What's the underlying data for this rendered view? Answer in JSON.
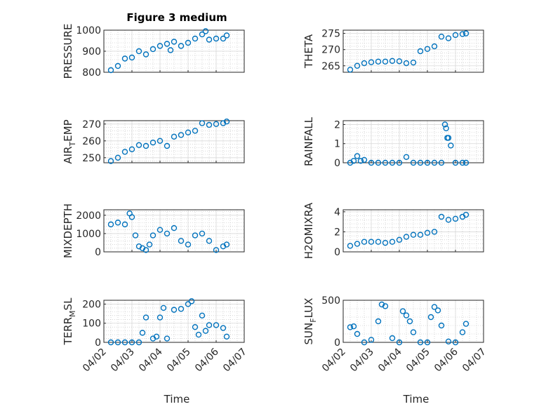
{
  "figure": {
    "title": "Figure 3 medium",
    "xlabel": "Time",
    "colors": {
      "marker": "#0072BD",
      "axis": "#262626",
      "grid": "#bdbdbd"
    }
  },
  "chart_data": [
    {
      "type": "scatter",
      "marker": "open-circle",
      "ylabel": "PRESSURE",
      "xlim": [
        "04/02",
        "04/07"
      ],
      "ylim": [
        800,
        1000
      ],
      "yticks": [
        800,
        900,
        1000
      ],
      "xticks": [
        "04/02",
        "04/03",
        "04/04",
        "04/05",
        "04/06",
        "04/07"
      ],
      "grid": "on",
      "x": [
        "04/02 06:00",
        "04/02 12:00",
        "04/02 18:00",
        "04/03 00:00",
        "04/03 06:00",
        "04/03 12:00",
        "04/03 18:00",
        "04/04 00:00",
        "04/04 06:00",
        "04/04 09:00",
        "04/04 12:00",
        "04/04 18:00",
        "04/05 00:00",
        "04/05 06:00",
        "04/05 12:00",
        "04/05 15:00",
        "04/05 18:00",
        "04/06 00:00",
        "04/06 06:00",
        "04/06 09:00"
      ],
      "y": [
        810,
        830,
        865,
        870,
        900,
        885,
        910,
        925,
        935,
        905,
        945,
        925,
        940,
        960,
        980,
        995,
        955,
        960,
        960,
        975
      ]
    },
    {
      "type": "scatter",
      "marker": "open-circle",
      "ylabel": "THETA",
      "xlim": [
        "04/02",
        "04/07"
      ],
      "ylim": [
        263,
        276
      ],
      "yticks": [
        265,
        270,
        275
      ],
      "xticks": [
        "04/02",
        "04/03",
        "04/04",
        "04/05",
        "04/06",
        "04/07"
      ],
      "grid": "on",
      "x": [
        "04/02 06:00",
        "04/02 12:00",
        "04/02 18:00",
        "04/03 00:00",
        "04/03 06:00",
        "04/03 12:00",
        "04/03 18:00",
        "04/04 00:00",
        "04/04 06:00",
        "04/04 12:00",
        "04/04 18:00",
        "04/05 00:00",
        "04/05 06:00",
        "04/05 12:00",
        "04/05 18:00",
        "04/06 00:00",
        "04/06 06:00",
        "04/06 09:00"
      ],
      "y": [
        263.8,
        265.0,
        265.8,
        266.1,
        266.3,
        266.3,
        266.5,
        266.4,
        265.8,
        266.0,
        269.5,
        270.2,
        271.0,
        274.0,
        273.5,
        274.5,
        274.8,
        275.0
      ]
    },
    {
      "type": "scatter",
      "marker": "open-circle",
      "ylabel": "AIR_TEMP",
      "ylabel_main": "AIR",
      "ylabel_sub": "T",
      "ylabel_rest": "EMP",
      "xlim": [
        "04/02",
        "04/07"
      ],
      "ylim": [
        247,
        272
      ],
      "yticks": [
        250,
        260,
        270
      ],
      "xticks": [
        "04/02",
        "04/03",
        "04/04",
        "04/05",
        "04/06",
        "04/07"
      ],
      "grid": "on",
      "x": [
        "04/02 06:00",
        "04/02 12:00",
        "04/02 18:00",
        "04/03 00:00",
        "04/03 06:00",
        "04/03 12:00",
        "04/03 18:00",
        "04/04 00:00",
        "04/04 06:00",
        "04/04 12:00",
        "04/04 18:00",
        "04/05 00:00",
        "04/05 06:00",
        "04/05 12:00",
        "04/05 18:00",
        "04/06 00:00",
        "04/06 06:00",
        "04/06 09:00"
      ],
      "y": [
        248,
        250,
        253.5,
        255,
        257.5,
        257,
        259,
        260,
        257,
        262.5,
        263.5,
        265,
        266,
        270.5,
        269.5,
        270,
        270.5,
        271.5
      ]
    },
    {
      "type": "scatter",
      "marker": "open-circle",
      "ylabel": "RAINFALL",
      "xlim": [
        "04/02",
        "04/07"
      ],
      "ylim": [
        0,
        2.2
      ],
      "yticks": [
        0,
        1,
        2
      ],
      "xticks": [
        "04/02",
        "04/03",
        "04/04",
        "04/05",
        "04/06",
        "04/07"
      ],
      "grid": "on",
      "x": [
        "04/02 06:00",
        "04/02 09:00",
        "04/02 12:00",
        "04/02 15:00",
        "04/02 18:00",
        "04/03 00:00",
        "04/03 06:00",
        "04/03 12:00",
        "04/03 18:00",
        "04/04 00:00",
        "04/04 06:00",
        "04/04 12:00",
        "04/04 18:00",
        "04/05 00:00",
        "04/05 06:00",
        "04/05 12:00",
        "04/05 15:00",
        "04/05 16:00",
        "04/05 17:00",
        "04/05 18:00",
        "04/05 20:00",
        "04/06 00:00",
        "04/06 06:00",
        "04/06 09:00"
      ],
      "y": [
        0,
        0.1,
        0.35,
        0.1,
        0.15,
        0,
        0,
        0,
        0,
        0,
        0.3,
        0,
        0,
        0,
        0,
        0,
        2.0,
        1.8,
        1.3,
        1.3,
        0.9,
        0,
        0,
        0
      ]
    },
    {
      "type": "scatter",
      "marker": "open-circle",
      "ylabel": "MIXDEPTH",
      "xlim": [
        "04/02",
        "04/07"
      ],
      "ylim": [
        0,
        2300
      ],
      "yticks": [
        0,
        1000,
        2000
      ],
      "xticks": [
        "04/02",
        "04/03",
        "04/04",
        "04/05",
        "04/06",
        "04/07"
      ],
      "grid": "on",
      "x": [
        "04/02 06:00",
        "04/02 12:00",
        "04/02 18:00",
        "04/02 22:00",
        "04/03 00:00",
        "04/03 03:00",
        "04/03 06:00",
        "04/03 09:00",
        "04/03 12:00",
        "04/03 15:00",
        "04/03 18:00",
        "04/04 00:00",
        "04/04 06:00",
        "04/04 12:00",
        "04/04 18:00",
        "04/05 00:00",
        "04/05 06:00",
        "04/05 12:00",
        "04/05 18:00",
        "04/06 00:00",
        "04/06 06:00",
        "04/06 09:00"
      ],
      "y": [
        1500,
        1600,
        1500,
        2100,
        1900,
        900,
        300,
        200,
        100,
        400,
        900,
        1200,
        1000,
        1300,
        600,
        400,
        900,
        1000,
        600,
        100,
        300,
        400
      ]
    },
    {
      "type": "scatter",
      "marker": "open-circle",
      "ylabel": "H2OMIXRA",
      "xlim": [
        "04/02",
        "04/07"
      ],
      "ylim": [
        0,
        4.2
      ],
      "yticks": [
        0,
        2,
        4
      ],
      "xticks": [
        "04/02",
        "04/03",
        "04/04",
        "04/05",
        "04/06",
        "04/07"
      ],
      "grid": "on",
      "x": [
        "04/02 06:00",
        "04/02 12:00",
        "04/02 18:00",
        "04/03 00:00",
        "04/03 06:00",
        "04/03 12:00",
        "04/03 18:00",
        "04/04 00:00",
        "04/04 06:00",
        "04/04 12:00",
        "04/04 18:00",
        "04/05 00:00",
        "04/05 06:00",
        "04/05 12:00",
        "04/05 18:00",
        "04/06 00:00",
        "04/06 06:00",
        "04/06 09:00"
      ],
      "y": [
        0.6,
        0.8,
        1.0,
        1.0,
        1.0,
        0.9,
        1.0,
        1.2,
        1.5,
        1.7,
        1.7,
        1.9,
        2.0,
        3.5,
        3.2,
        3.3,
        3.5,
        3.7
      ]
    },
    {
      "type": "scatter",
      "marker": "open-circle",
      "ylabel": "TERR_MSL",
      "ylabel_main": "TERR",
      "ylabel_sub": "M",
      "ylabel_rest": "SL",
      "xlim": [
        "04/02",
        "04/07"
      ],
      "ylim": [
        0,
        220
      ],
      "yticks": [
        0,
        100,
        200
      ],
      "xticks": [
        "04/02",
        "04/03",
        "04/04",
        "04/05",
        "04/06",
        "04/07"
      ],
      "grid": "on",
      "x": [
        "04/02 06:00",
        "04/02 12:00",
        "04/02 18:00",
        "04/03 00:00",
        "04/03 06:00",
        "04/03 09:00",
        "04/03 12:00",
        "04/03 18:00",
        "04/03 21:00",
        "04/04 00:00",
        "04/04 03:00",
        "04/04 06:00",
        "04/04 12:00",
        "04/04 18:00",
        "04/05 00:00",
        "04/05 03:00",
        "04/05 06:00",
        "04/05 09:00",
        "04/05 12:00",
        "04/05 15:00",
        "04/05 18:00",
        "04/06 00:00",
        "04/06 06:00",
        "04/06 09:00"
      ],
      "y": [
        0,
        0,
        0,
        0,
        0,
        50,
        130,
        20,
        30,
        130,
        180,
        20,
        170,
        175,
        200,
        215,
        80,
        40,
        140,
        60,
        90,
        90,
        75,
        30
      ]
    },
    {
      "type": "scatter",
      "marker": "open-circle",
      "ylabel": "SUN_FLUX",
      "ylabel_main": "SUN",
      "ylabel_sub": "F",
      "ylabel_rest": "LUX",
      "xlim": [
        "04/02",
        "04/07"
      ],
      "ylim": [
        0,
        500
      ],
      "yticks": [
        0,
        500
      ],
      "xticks": [
        "04/02",
        "04/03",
        "04/04",
        "04/05",
        "04/06",
        "04/07"
      ],
      "grid": "on",
      "x": [
        "04/02 06:00",
        "04/02 09:00",
        "04/02 12:00",
        "04/02 18:00",
        "04/03 00:00",
        "04/03 06:00",
        "04/03 09:00",
        "04/03 12:00",
        "04/03 18:00",
        "04/04 00:00",
        "04/04 03:00",
        "04/04 06:00",
        "04/04 09:00",
        "04/04 12:00",
        "04/04 18:00",
        "04/05 00:00",
        "04/05 03:00",
        "04/05 06:00",
        "04/05 09:00",
        "04/05 12:00",
        "04/05 18:00",
        "04/06 00:00",
        "04/06 06:00",
        "04/06 09:00"
      ],
      "y": [
        180,
        190,
        100,
        0,
        30,
        250,
        450,
        430,
        50,
        0,
        370,
        320,
        250,
        120,
        0,
        0,
        300,
        420,
        380,
        200,
        10,
        0,
        120,
        220
      ]
    }
  ]
}
